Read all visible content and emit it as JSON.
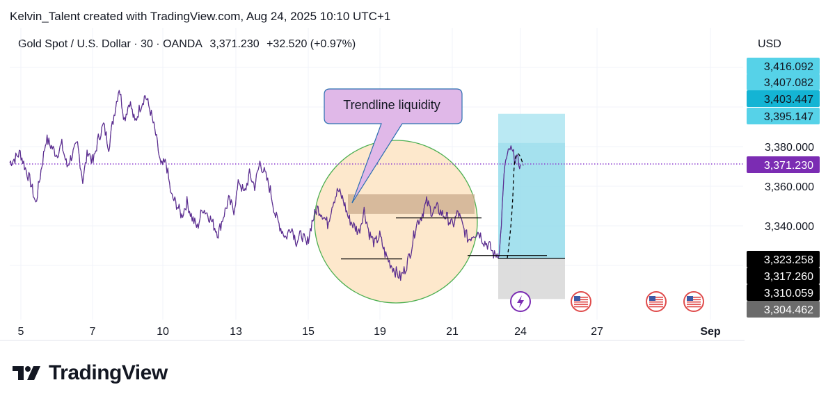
{
  "header": {
    "credit": "Kelvin_Talent created with TradingView.com, Aug 24, 2025 10:10 UTC+1",
    "symbol": "Gold Spot / U.S. Dollar · 30 · OANDA",
    "last": "3,371.230",
    "change": "+32.520 (+0.97%)",
    "currency": "USD"
  },
  "brand": {
    "name": "TradingView",
    "icon": "tradingview-logo-icon"
  },
  "annotation": {
    "text": "Trendline liquidity"
  },
  "colors": {
    "price_line": "#5b2c91",
    "last_price_label": "#7b2cb3",
    "target_zone": "#8ed9ea",
    "stop_zone": "#d9d9d9",
    "circle_fill": "#fde8cc",
    "circle_stroke": "#4caf50",
    "callout_fill": "#e0b8e8"
  },
  "chart_data": {
    "type": "line",
    "ylim": [
      3298,
      3432
    ],
    "x_tick_labels": [
      "5",
      "7",
      "10",
      "13",
      "15",
      "19",
      "21",
      "24",
      "27",
      "Sep"
    ],
    "y_tick_labels": [
      "3,380.000",
      "3,360.000",
      "3,340.000"
    ],
    "price_labels": [
      {
        "label": "3,416.092",
        "value": 3416.092,
        "style": "target"
      },
      {
        "label": "3,407.082",
        "value": 3407.082,
        "style": "target"
      },
      {
        "label": "3,403.447",
        "value": 3403.447,
        "style": "target-dark"
      },
      {
        "label": "3,395.147",
        "value": 3395.147,
        "style": "target"
      },
      {
        "label": "3,371.230",
        "value": 3371.23,
        "style": "last"
      },
      {
        "label": "3,323.258",
        "value": 3323.258,
        "style": "black"
      },
      {
        "label": "3,317.260",
        "value": 3317.26,
        "style": "black"
      },
      {
        "label": "3,310.059",
        "value": 3310.059,
        "style": "black"
      },
      {
        "label": "3,304.462",
        "value": 3304.462,
        "style": "gray"
      }
    ],
    "series": [
      {
        "values": [
          3372,
          3374,
          3377,
          3369,
          3362,
          3351,
          3368,
          3384,
          3380,
          3376,
          3381,
          3370,
          3376,
          3381,
          3363,
          3378,
          3372,
          3384,
          3391,
          3380,
          3396,
          3410,
          3394,
          3403,
          3392,
          3400,
          3406,
          3398,
          3386,
          3370,
          3372,
          3355,
          3351,
          3345,
          3352,
          3344,
          3339,
          3349,
          3346,
          3341,
          3336,
          3345,
          3353,
          3348,
          3363,
          3356,
          3366,
          3360,
          3372,
          3366,
          3358,
          3345,
          3339,
          3334,
          3340,
          3332,
          3336,
          3330,
          3342,
          3349,
          3346,
          3341,
          3352,
          3358,
          3353,
          3344,
          3340,
          3337,
          3348,
          3336,
          3331,
          3335,
          3326,
          3321,
          3317,
          3314,
          3319,
          3328,
          3341,
          3345,
          3352,
          3347,
          3349,
          3346,
          3344,
          3340,
          3347,
          3339,
          3333,
          3336,
          3337,
          3332,
          3330,
          3325,
          3327,
          3371,
          3379,
          3374,
          3371
        ]
      }
    ],
    "trade_levels": {
      "target_top": 3395.147,
      "entry": 3323.258,
      "stop_bottom": 3304.462,
      "consolidation_top": 3356,
      "consolidation_bottom": 3346,
      "trend_low": 3324,
      "range_high": 3344,
      "range_low": 3325
    },
    "event_icons": [
      "flash-icon",
      "us-flag-icon",
      "us-flag-icon",
      "us-flag-icon"
    ]
  }
}
